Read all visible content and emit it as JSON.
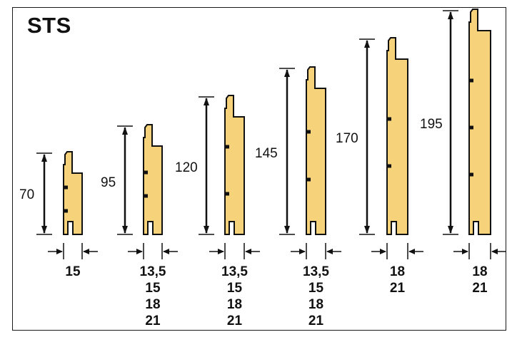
{
  "title": "STS",
  "colors": {
    "wood": "#F6D27A",
    "outline": "#111111",
    "background": "#FFFFFF"
  },
  "profiles": [
    {
      "height": "70",
      "widths": [
        "15"
      ]
    },
    {
      "height": "95",
      "widths": [
        "13,5",
        "15",
        "18",
        "21"
      ]
    },
    {
      "height": "120",
      "widths": [
        "13,5",
        "15",
        "18",
        "21"
      ]
    },
    {
      "height": "145",
      "widths": [
        "13,5",
        "15",
        "18",
        "21"
      ]
    },
    {
      "height": "170",
      "widths": [
        "18",
        "21"
      ]
    },
    {
      "height": "195",
      "widths": [
        "18",
        "21"
      ]
    }
  ]
}
